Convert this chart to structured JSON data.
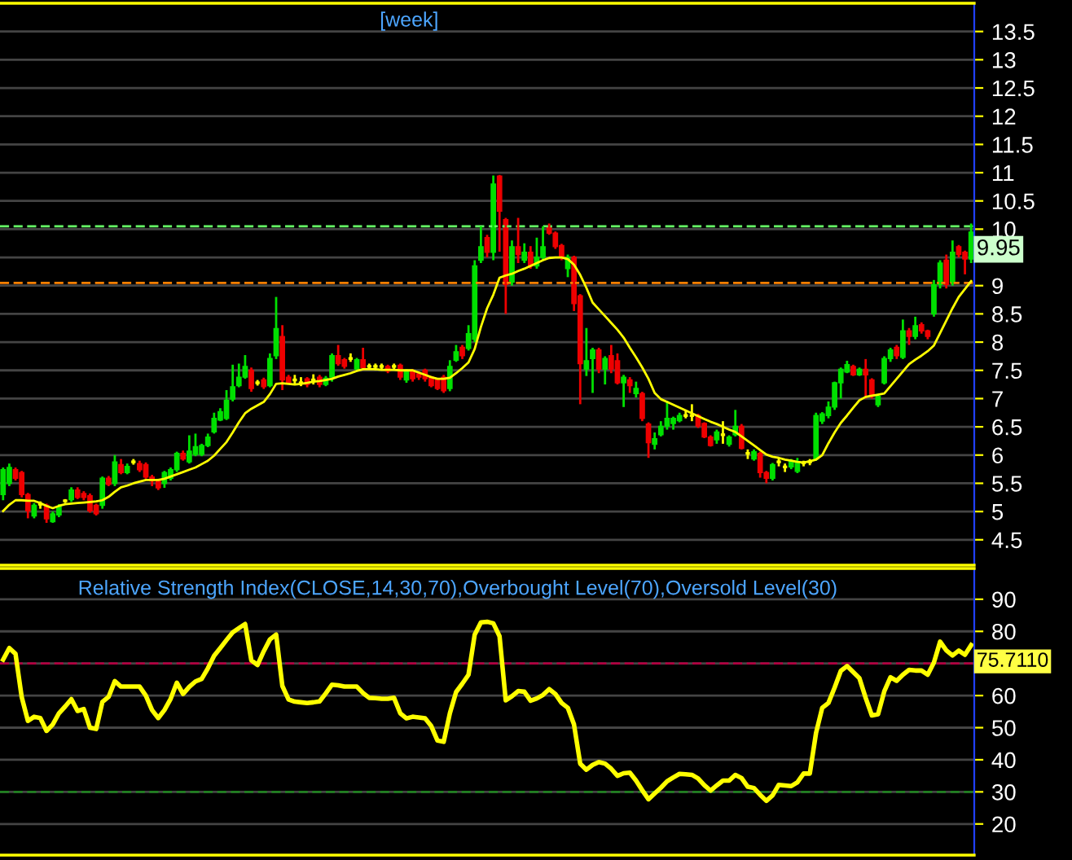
{
  "chart_data": [
    {
      "type": "candlestick",
      "title": "[week]",
      "categories": [
        null,
        null,
        null,
        null,
        null,
        null,
        null,
        null,
        null,
        null,
        null,
        null,
        null,
        null,
        null,
        null,
        null,
        null,
        null,
        null,
        null,
        null,
        null,
        null,
        null,
        null,
        null,
        null,
        null,
        null,
        null,
        null,
        null,
        null,
        null,
        null,
        null,
        null,
        null,
        null,
        null,
        null,
        null,
        null,
        null,
        null,
        null,
        null,
        null,
        null,
        null,
        null,
        null,
        null,
        null,
        null,
        null,
        null,
        null,
        null,
        null,
        null,
        null,
        null,
        null,
        null,
        null,
        null,
        null,
        null,
        null,
        null,
        null,
        null,
        null,
        null,
        null,
        null,
        null,
        null,
        null,
        null,
        null,
        null,
        null,
        null,
        null,
        null,
        null,
        null,
        null,
        null,
        null,
        null,
        null,
        null,
        null,
        null,
        null,
        null,
        null,
        null,
        null,
        null,
        null,
        null,
        null,
        null,
        null,
        null,
        null,
        null,
        null,
        null,
        null,
        null,
        null,
        null,
        null,
        null,
        null,
        null,
        null,
        null,
        null,
        null,
        null,
        null,
        null,
        null,
        null,
        null,
        null,
        null,
        null,
        null,
        null,
        null,
        null,
        null,
        null,
        null,
        null,
        null,
        null,
        null,
        null,
        null,
        null,
        null,
        null,
        null,
        null,
        null,
        null,
        null,
        null
      ],
      "ohlc": [
        [
          5.3,
          5.78,
          5.2,
          5.74
        ],
        [
          5.5,
          5.85,
          5.45,
          5.78
        ],
        [
          5.74,
          5.78,
          5.55,
          5.59
        ],
        [
          5.69,
          5.72,
          5.25,
          5.3
        ],
        [
          5.3,
          5.33,
          4.88,
          5.01
        ],
        [
          4.92,
          5.15,
          4.88,
          5.11
        ],
        [
          5.13,
          5.18,
          5.05,
          5.13
        ],
        [
          5.11,
          5.14,
          4.8,
          4.87
        ],
        [
          4.82,
          5.0,
          4.8,
          4.96
        ],
        [
          4.94,
          5.13,
          4.9,
          5.09
        ],
        [
          5.19,
          5.22,
          5.15,
          5.19
        ],
        [
          5.21,
          5.43,
          5.17,
          5.38
        ],
        [
          5.38,
          5.43,
          5.22,
          5.25
        ],
        [
          5.32,
          5.36,
          5.2,
          5.25
        ],
        [
          5.28,
          5.32,
          4.98,
          5.01
        ],
        [
          5.11,
          5.14,
          4.93,
          4.96
        ],
        [
          5.11,
          5.62,
          5.05,
          5.59
        ],
        [
          5.59,
          5.63,
          5.45,
          5.48
        ],
        [
          5.5,
          6.0,
          5.45,
          5.88
        ],
        [
          5.83,
          5.93,
          5.66,
          5.69
        ],
        [
          5.69,
          5.85,
          5.66,
          5.8
        ],
        [
          5.88,
          5.93,
          5.83,
          5.88
        ],
        [
          5.85,
          5.9,
          5.7,
          5.74
        ],
        [
          5.83,
          5.87,
          5.58,
          5.61
        ],
        [
          5.61,
          5.65,
          5.45,
          5.54
        ],
        [
          5.54,
          5.58,
          5.38,
          5.42
        ],
        [
          5.5,
          5.72,
          5.42,
          5.69
        ],
        [
          5.59,
          5.78,
          5.55,
          5.74
        ],
        [
          5.74,
          6.06,
          5.7,
          6.03
        ],
        [
          6.03,
          6.08,
          5.9,
          5.93
        ],
        [
          5.88,
          6.35,
          5.85,
          6.07
        ],
        [
          6.01,
          6.38,
          5.98,
          6.15
        ],
        [
          6.01,
          6.2,
          5.98,
          6.17
        ],
        [
          6.17,
          6.38,
          6.14,
          6.32
        ],
        [
          6.41,
          6.75,
          6.38,
          6.65
        ],
        [
          6.62,
          6.83,
          6.6,
          6.77
        ],
        [
          6.65,
          7.15,
          6.62,
          6.97
        ],
        [
          6.99,
          7.6,
          6.95,
          7.21
        ],
        [
          7.23,
          7.62,
          7.2,
          7.38
        ],
        [
          7.38,
          7.77,
          7.35,
          7.57
        ],
        [
          7.5,
          7.55,
          7.12,
          7.18
        ],
        [
          7.28,
          7.33,
          7.23,
          7.28
        ],
        [
          7.33,
          7.37,
          7.17,
          7.21
        ],
        [
          7.23,
          7.8,
          7.2,
          7.71
        ],
        [
          7.76,
          8.8,
          7.7,
          8.24
        ],
        [
          8.1,
          8.3,
          7.15,
          7.33
        ],
        [
          7.38,
          7.42,
          7.25,
          7.28
        ],
        [
          7.33,
          7.42,
          7.25,
          7.33
        ],
        [
          7.28,
          7.38,
          7.22,
          7.28
        ],
        [
          7.35,
          7.38,
          7.2,
          7.25
        ],
        [
          7.33,
          7.43,
          7.25,
          7.33
        ],
        [
          7.38,
          7.42,
          7.2,
          7.25
        ],
        [
          7.25,
          7.4,
          7.22,
          7.36
        ],
        [
          7.38,
          7.8,
          7.3,
          7.76
        ],
        [
          7.76,
          7.95,
          7.58,
          7.62
        ],
        [
          7.69,
          7.72,
          7.53,
          7.57
        ],
        [
          7.71,
          7.8,
          7.65,
          7.71
        ],
        [
          7.52,
          7.72,
          7.48,
          7.69
        ],
        [
          7.69,
          7.9,
          7.5,
          7.55
        ],
        [
          7.57,
          7.62,
          7.52,
          7.57
        ],
        [
          7.57,
          7.62,
          7.5,
          7.57
        ],
        [
          7.57,
          7.62,
          7.52,
          7.57
        ],
        [
          7.57,
          7.6,
          7.45,
          7.49
        ],
        [
          7.57,
          7.62,
          7.5,
          7.57
        ],
        [
          7.59,
          7.62,
          7.33,
          7.38
        ],
        [
          7.33,
          7.52,
          7.28,
          7.49
        ],
        [
          7.49,
          7.52,
          7.3,
          7.35
        ],
        [
          7.44,
          7.47,
          7.33,
          7.38
        ],
        [
          7.5,
          7.53,
          7.3,
          7.35
        ],
        [
          7.38,
          7.4,
          7.2,
          7.23
        ],
        [
          7.33,
          7.36,
          7.15,
          7.18
        ],
        [
          7.38,
          7.42,
          7.1,
          7.14
        ],
        [
          7.18,
          7.68,
          7.13,
          7.57
        ],
        [
          7.68,
          7.95,
          7.65,
          7.83
        ],
        [
          7.91,
          7.95,
          7.7,
          7.76
        ],
        [
          7.89,
          8.3,
          7.85,
          8.15
        ],
        [
          8.05,
          9.45,
          8.0,
          9.35
        ],
        [
          9.45,
          10.05,
          9.4,
          9.69
        ],
        [
          9.85,
          9.9,
          9.5,
          9.59
        ],
        [
          9.59,
          10.95,
          9.45,
          10.8
        ],
        [
          10.94,
          10.96,
          9.6,
          10.32
        ],
        [
          10.17,
          10.2,
          8.5,
          9.02
        ],
        [
          9.06,
          9.8,
          9.0,
          9.69
        ],
        [
          9.69,
          10.2,
          9.4,
          9.55
        ],
        [
          9.45,
          9.75,
          9.4,
          9.59
        ],
        [
          9.59,
          9.7,
          9.3,
          9.35
        ],
        [
          9.35,
          9.85,
          9.3,
          9.5
        ],
        [
          9.5,
          10.05,
          9.45,
          9.69
        ],
        [
          10.03,
          10.1,
          9.9,
          9.93
        ],
        [
          9.93,
          9.96,
          9.65,
          9.69
        ],
        [
          9.71,
          9.74,
          9.45,
          9.5
        ],
        [
          9.3,
          9.55,
          9.15,
          9.5
        ],
        [
          9.5,
          9.53,
          8.55,
          8.68
        ],
        [
          8.82,
          8.85,
          6.9,
          7.62
        ],
        [
          7.52,
          8.25,
          7.4,
          7.67
        ],
        [
          7.71,
          7.9,
          7.1,
          7.86
        ],
        [
          7.86,
          7.9,
          7.45,
          7.52
        ],
        [
          7.52,
          7.75,
          7.25,
          7.71
        ],
        [
          7.76,
          7.95,
          7.45,
          7.52
        ],
        [
          7.67,
          7.8,
          7.25,
          7.28
        ],
        [
          7.28,
          7.42,
          6.85,
          7.38
        ],
        [
          7.33,
          7.38,
          7.1,
          7.23
        ],
        [
          7.09,
          7.3,
          7.02,
          7.18
        ],
        [
          7.09,
          7.12,
          6.6,
          6.65
        ],
        [
          6.55,
          6.58,
          5.95,
          6.22
        ],
        [
          6.19,
          6.4,
          6.1,
          6.29
        ],
        [
          6.36,
          6.6,
          6.33,
          6.51
        ],
        [
          6.51,
          6.96,
          6.45,
          6.65
        ],
        [
          6.56,
          6.68,
          6.45,
          6.65
        ],
        [
          6.61,
          6.75,
          6.58,
          6.7
        ],
        [
          6.7,
          6.8,
          6.65,
          6.7
        ],
        [
          6.7,
          6.9,
          6.6,
          6.7
        ],
        [
          6.7,
          6.73,
          6.48,
          6.51
        ],
        [
          6.56,
          6.58,
          6.3,
          6.32
        ],
        [
          6.32,
          6.35,
          6.15,
          6.17
        ],
        [
          6.27,
          6.45,
          6.2,
          6.41
        ],
        [
          6.36,
          6.6,
          6.2,
          6.36
        ],
        [
          6.19,
          6.35,
          6.15,
          6.32
        ],
        [
          6.36,
          6.8,
          6.33,
          6.51
        ],
        [
          6.51,
          6.55,
          6.1,
          6.12
        ],
        [
          6.03,
          6.1,
          5.93,
          6.03
        ],
        [
          5.93,
          6.1,
          5.9,
          6.06
        ],
        [
          6.03,
          6.06,
          5.6,
          5.69
        ],
        [
          5.69,
          5.72,
          5.5,
          5.59
        ],
        [
          5.59,
          5.86,
          5.55,
          5.83
        ],
        [
          5.88,
          5.95,
          5.8,
          5.88
        ],
        [
          5.79,
          5.85,
          5.7,
          5.79
        ],
        [
          5.79,
          5.93,
          5.75,
          5.9
        ],
        [
          5.71,
          5.95,
          5.68,
          5.88
        ],
        [
          5.86,
          5.9,
          5.8,
          5.86
        ],
        [
          5.88,
          5.93,
          5.82,
          5.88
        ],
        [
          5.93,
          6.75,
          5.9,
          6.7
        ],
        [
          6.6,
          6.76,
          6.55,
          6.73
        ],
        [
          6.7,
          6.95,
          6.65,
          6.85
        ],
        [
          6.85,
          7.3,
          6.8,
          7.28
        ],
        [
          7.28,
          7.55,
          7.0,
          7.52
        ],
        [
          7.47,
          7.67,
          7.45,
          7.6
        ],
        [
          7.57,
          7.6,
          7.4,
          7.42
        ],
        [
          7.42,
          7.55,
          7.4,
          7.52
        ],
        [
          7.52,
          7.7,
          7.0,
          7.42
        ],
        [
          7.33,
          7.36,
          7.0,
          7.04
        ],
        [
          6.89,
          7.08,
          6.85,
          7.04
        ],
        [
          7.28,
          7.75,
          7.25,
          7.71
        ],
        [
          7.71,
          7.9,
          7.65,
          7.86
        ],
        [
          7.91,
          7.95,
          7.7,
          7.76
        ],
        [
          7.73,
          8.4,
          7.7,
          8.2
        ],
        [
          8.2,
          8.25,
          7.95,
          8.1
        ],
        [
          8.1,
          8.45,
          8.05,
          8.29
        ],
        [
          8.31,
          8.35,
          8.15,
          8.2
        ],
        [
          8.2,
          8.22,
          8.05,
          8.1
        ],
        [
          8.5,
          9.1,
          8.45,
          9.02
        ],
        [
          9.02,
          9.45,
          8.95,
          9.4
        ],
        [
          9.45,
          9.55,
          8.95,
          9.02
        ],
        [
          9.06,
          9.8,
          9.0,
          9.59
        ],
        [
          9.69,
          9.72,
          9.5,
          9.55
        ],
        [
          9.59,
          9.62,
          9.2,
          9.47
        ],
        [
          9.47,
          10.1,
          9.4,
          9.95
        ]
      ],
      "colors": [
        "#00e000",
        "#00e000",
        "#ee0000",
        "#ee0000",
        "#ee0000",
        "#00e000",
        "#ffff00",
        "#ee0000",
        "#00e000",
        "#00e000",
        "#ffff00",
        "#00e000",
        "#ee0000",
        "#ee0000",
        "#ee0000",
        "#ee0000",
        "#00e000",
        "#ee0000",
        "#00e000",
        "#ee0000",
        "#00e000",
        "#ffff00",
        "#ee0000",
        "#ee0000",
        "#ee0000",
        "#ee0000",
        "#00e000",
        "#00e000",
        "#00e000",
        "#ee0000",
        "#00e000",
        "#00e000",
        "#00e000",
        "#00e000",
        "#00e000",
        "#00e000",
        "#00e000",
        "#00e000",
        "#00e000",
        "#00e000",
        "#ee0000",
        "#ffff00",
        "#ee0000",
        "#00e000",
        "#00e000",
        "#ee0000",
        "#ee0000",
        "#ffff00",
        "#ffff00",
        "#ee0000",
        "#ffff00",
        "#ee0000",
        "#00e000",
        "#00e000",
        "#ee0000",
        "#ee0000",
        "#ffff00",
        "#00e000",
        "#ee0000",
        "#ffff00",
        "#ffff00",
        "#ffff00",
        "#ee0000",
        "#ffff00",
        "#ee0000",
        "#00e000",
        "#ee0000",
        "#ee0000",
        "#ee0000",
        "#ee0000",
        "#ee0000",
        "#ee0000",
        "#00e000",
        "#00e000",
        "#ee0000",
        "#00e000",
        "#00e000",
        "#00e000",
        "#ee0000",
        "#00e000",
        "#ee0000",
        "#ee0000",
        "#00e000",
        "#ee0000",
        "#00e000",
        "#ee0000",
        "#00e000",
        "#00e000",
        "#ee0000",
        "#ee0000",
        "#ee0000",
        "#00e000",
        "#ee0000",
        "#ee0000",
        "#00e000",
        "#00e000",
        "#ee0000",
        "#00e000",
        "#ee0000",
        "#ee0000",
        "#00e000",
        "#ee0000",
        "#00e000",
        "#ee0000",
        "#ee0000",
        "#00e000",
        "#00e000",
        "#00e000",
        "#00e000",
        "#00e000",
        "#ffff00",
        "#ffff00",
        "#ee0000",
        "#ee0000",
        "#ee0000",
        "#00e000",
        "#ffff00",
        "#00e000",
        "#00e000",
        "#ee0000",
        "#ffff00",
        "#00e000",
        "#ee0000",
        "#ee0000",
        "#00e000",
        "#ffff00",
        "#ffff00",
        "#00e000",
        "#00e000",
        "#ffff00",
        "#ffff00",
        "#00e000",
        "#00e000",
        "#00e000",
        "#00e000",
        "#00e000",
        "#00e000",
        "#ee0000",
        "#00e000",
        "#ee0000",
        "#ee0000",
        "#00e000",
        "#00e000",
        "#00e000",
        "#ee0000",
        "#00e000",
        "#ee0000",
        "#00e000",
        "#ee0000",
        "#ee0000",
        "#00e000",
        "#00e000",
        "#ee0000",
        "#00e000",
        "#ee0000",
        "#ee0000",
        "#00e000"
      ],
      "series": [
        {
          "type": "line",
          "color": "#ffff00",
          "values": [
            5.01,
            5.12,
            5.2,
            5.2,
            5.19,
            5.19,
            5.15,
            5.1,
            5.06,
            5.1,
            5.13,
            5.14,
            5.15,
            5.16,
            5.17,
            5.18,
            5.2,
            5.26,
            5.35,
            5.43,
            5.46,
            5.5,
            5.53,
            5.56,
            5.56,
            5.56,
            5.58,
            5.62,
            5.66,
            5.7,
            5.74,
            5.78,
            5.84,
            5.9,
            5.99,
            6.11,
            6.23,
            6.4,
            6.58,
            6.74,
            6.82,
            6.88,
            6.94,
            7.08,
            7.26,
            7.27,
            7.26,
            7.25,
            7.26,
            7.28,
            7.3,
            7.31,
            7.33,
            7.35,
            7.39,
            7.42,
            7.45,
            7.49,
            7.52,
            7.52,
            7.52,
            7.51,
            7.51,
            7.51,
            7.5,
            7.5,
            7.5,
            7.46,
            7.42,
            7.38,
            7.35,
            7.35,
            7.37,
            7.45,
            7.54,
            7.64,
            7.88,
            8.27,
            8.6,
            8.84,
            9.14,
            9.18,
            9.21,
            9.26,
            9.3,
            9.35,
            9.4,
            9.45,
            9.49,
            9.5,
            9.5,
            9.47,
            9.37,
            9.19,
            8.96,
            8.7,
            8.58,
            8.46,
            8.34,
            8.22,
            8.08,
            7.9,
            7.73,
            7.55,
            7.35,
            7.1,
            6.99,
            6.94,
            6.89,
            6.84,
            6.79,
            6.74,
            6.69,
            6.64,
            6.59,
            6.55,
            6.5,
            6.45,
            6.41,
            6.33,
            6.25,
            6.17,
            6.09,
            6.01,
            5.97,
            5.95,
            5.92,
            5.9,
            5.88,
            5.87,
            5.89,
            5.92,
            6.0,
            6.21,
            6.4,
            6.57,
            6.7,
            6.84,
            6.97,
            7.03,
            7.05,
            7.07,
            7.09,
            7.22,
            7.35,
            7.48,
            7.61,
            7.69,
            7.76,
            7.84,
            7.94,
            8.16,
            8.38,
            8.6,
            8.8,
            8.94,
            9.08
          ]
        }
      ],
      "ylim": [
        4.05,
        14.0
      ],
      "yticks": [
        4.5,
        5,
        5.5,
        6,
        6.5,
        7,
        7.5,
        8,
        8.5,
        9,
        {
          "value": 9.5,
          "label": null
        },
        10,
        10.5,
        11,
        11.5,
        12,
        12.5,
        13,
        13.5
      ],
      "ref_lines": [
        {
          "axis": "y",
          "value": 10.05,
          "color": "#66ff66",
          "line_style": "dashed"
        },
        {
          "axis": "y",
          "value": 9.05,
          "color": "#ff8000",
          "line_style": "dashed"
        }
      ],
      "annotations": [
        "9.95"
      ],
      "grid": "y",
      "tick_labels": "y"
    },
    {
      "type": "line",
      "title": "Relative Strength Index(CLOSE,14,30,70),Overbought Level(70),Oversold Level(30)",
      "series": [
        {
          "color": "#ffff00",
          "values": [
            71.2,
            74.8,
            73,
            59.5,
            52.1,
            53.4,
            53,
            49,
            51,
            54.5,
            56.6,
            58.9,
            55.2,
            55.8,
            50,
            49.6,
            58,
            59.6,
            64.5,
            62.8,
            62.8,
            62.8,
            62.8,
            60,
            55.5,
            53,
            55.5,
            59,
            64,
            60.5,
            62.7,
            64.4,
            65.2,
            68.5,
            72.4,
            74.8,
            77.3,
            79.7,
            81,
            82.3,
            71,
            69.5,
            73.8,
            77.5,
            79,
            63,
            58.8,
            58.1,
            57.9,
            57.7,
            57.9,
            58.2,
            60.7,
            63.4,
            63.2,
            62.8,
            62.8,
            62.8,
            60.8,
            59.3,
            59.2,
            59,
            59,
            59.3,
            54.5,
            52.9,
            53.4,
            53.2,
            52.9,
            50.5,
            46,
            45.6,
            54.5,
            61.1,
            63.7,
            66.5,
            79,
            82.8,
            83,
            82.5,
            78.5,
            58.5,
            59.8,
            61.4,
            61.2,
            58.4,
            59.1,
            60.2,
            62,
            60.5,
            57.7,
            56.2,
            51,
            38.8,
            36.9,
            38.4,
            39.3,
            38.8,
            37.2,
            35,
            35.8,
            36,
            33.5,
            30.5,
            27.7,
            29.5,
            31.3,
            33.3,
            34.5,
            35.6,
            35.5,
            35.3,
            34.2,
            32.1,
            30.4,
            32,
            33.5,
            33.5,
            35.3,
            34.3,
            31.6,
            31.2,
            29.1,
            27.2,
            28.9,
            32.2,
            32,
            31.8,
            33,
            35.7,
            35.7,
            48.3,
            56.2,
            57.7,
            62.5,
            67.7,
            69.2,
            67.3,
            65.4,
            59.3,
            53.8,
            54.2,
            61.3,
            65.7,
            64.6,
            66.5,
            68,
            67.8,
            67.8,
            66.5,
            70.3,
            76.8,
            74.1,
            72.5,
            74,
            72.7,
            75.7
          ]
        }
      ],
      "categories": [
        null,
        null,
        null,
        null,
        null,
        null,
        null,
        null,
        null,
        null,
        null,
        null,
        null,
        null,
        null,
        null,
        null,
        null,
        null,
        null,
        null,
        null,
        null,
        null,
        null,
        null,
        null,
        null,
        null,
        null,
        null,
        null,
        null,
        null,
        null,
        null,
        null,
        null,
        null,
        null,
        null,
        null,
        null,
        null,
        null,
        null,
        null,
        null,
        null,
        null,
        null,
        null,
        null,
        null,
        null,
        null,
        null,
        null,
        null,
        null,
        null,
        null,
        null,
        null,
        null,
        null,
        null,
        null,
        null,
        null,
        null,
        null,
        null,
        null,
        null,
        null,
        null,
        null,
        null,
        null,
        null,
        null,
        null,
        null,
        null,
        null,
        null,
        null,
        null,
        null,
        null,
        null,
        null,
        null,
        null,
        null,
        null,
        null,
        null,
        null,
        null,
        null,
        null,
        null,
        null,
        null,
        null,
        null,
        null,
        null,
        null,
        null,
        null,
        null,
        null,
        null,
        null,
        null,
        null,
        null,
        null,
        null,
        null,
        null,
        null,
        null,
        null,
        null,
        null,
        null,
        null,
        null,
        null,
        null,
        null,
        null,
        null,
        null,
        null,
        null,
        null,
        null,
        null,
        null,
        null,
        null,
        null,
        null,
        null,
        null,
        null,
        null,
        null,
        null,
        null,
        null,
        null
      ],
      "ylim": [
        10.3,
        99.6
      ],
      "yticks": [
        20,
        30,
        40,
        50,
        60,
        {
          "value": 70,
          "label": null
        },
        80,
        90
      ],
      "ref_lines": [
        {
          "axis": "y",
          "value": 70,
          "color": "#b00040",
          "line_style": "dashed"
        },
        {
          "axis": "y",
          "value": 30,
          "color": "#208020",
          "line_style": "dashed"
        }
      ],
      "annotations": [
        "75.7110"
      ],
      "grid": "y",
      "tick_labels": "y"
    }
  ]
}
